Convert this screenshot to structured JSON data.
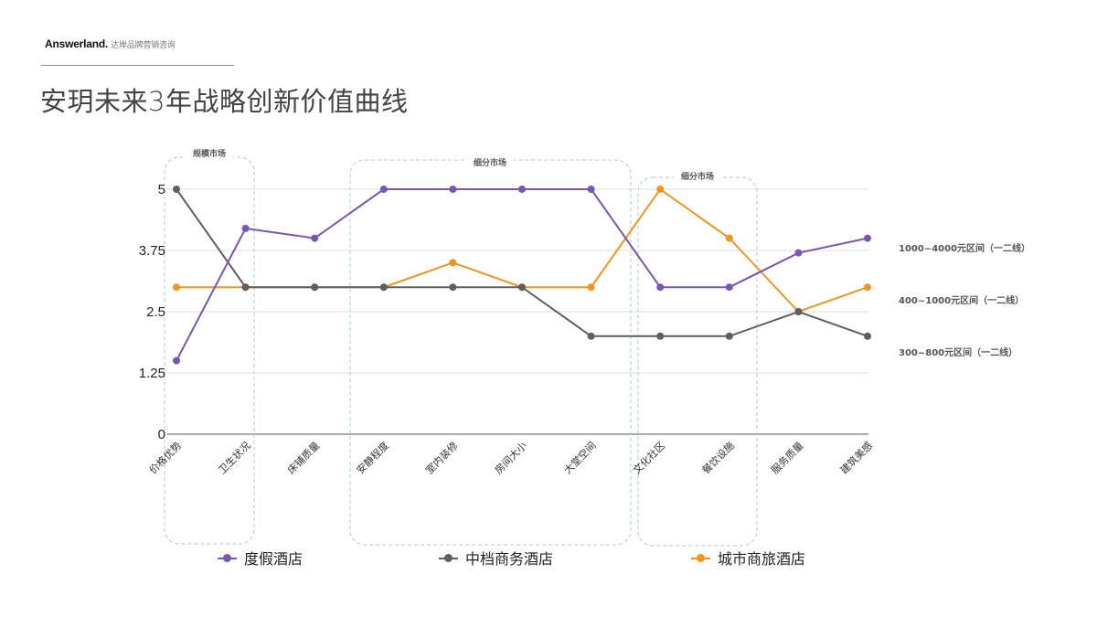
{
  "header": {
    "brand": "Answerland.",
    "brand_sub": "达岸品牌营销咨询",
    "title": "安玥未来3年战略创新价值曲线"
  },
  "groups": [
    {
      "label": "规模市场"
    },
    {
      "label": "细分市场"
    },
    {
      "label": "细分市场"
    }
  ],
  "legend": [
    {
      "name": "度假酒店",
      "color": "#7b55b5"
    },
    {
      "name": "中档商务酒店",
      "color": "#5f5f5f"
    },
    {
      "name": "城市商旅酒店",
      "color": "#f6931e"
    }
  ],
  "right_labels": [
    "1000~4000元区间（一二线）",
    "400~1000元区间（一二线）",
    "300~800元区间（一二线）"
  ],
  "chart_data": {
    "type": "line",
    "title": "安玥未来3年战略创新价值曲线",
    "xlabel": "",
    "ylabel": "",
    "ylim": [
      0,
      5
    ],
    "yticks": [
      "0",
      "1.25",
      "2.5",
      "3.75",
      "5"
    ],
    "grid": true,
    "legend_position": "bottom",
    "categories": [
      "价格优势",
      "卫生状况",
      "床铺质量",
      "安静程度",
      "室内装修",
      "房间大小",
      "大堂空间",
      "文化社区",
      "餐饮设施",
      "服务质量",
      "建筑美感"
    ],
    "series": [
      {
        "name": "度假酒店",
        "color": "#7b55b5",
        "annotation": "1000~4000元区间（一二线）",
        "values": [
          1.5,
          4.2,
          4.0,
          5,
          5,
          5,
          5,
          3,
          3,
          3.7,
          4.0
        ]
      },
      {
        "name": "中档商务酒店",
        "color": "#5f5f5f",
        "annotation": "300~800元区间（一二线）",
        "values": [
          5,
          3,
          3,
          3,
          3,
          3,
          2,
          2,
          2,
          2.5,
          2
        ]
      },
      {
        "name": "城市商旅酒店",
        "color": "#f6931e",
        "annotation": "400~1000元区间（一二线）",
        "values": [
          3,
          3,
          3,
          3,
          3.5,
          3,
          3,
          5,
          4,
          2.5,
          3
        ]
      }
    ],
    "annotations": [
      "规模市场",
      "细分市场",
      "细分市场"
    ]
  }
}
